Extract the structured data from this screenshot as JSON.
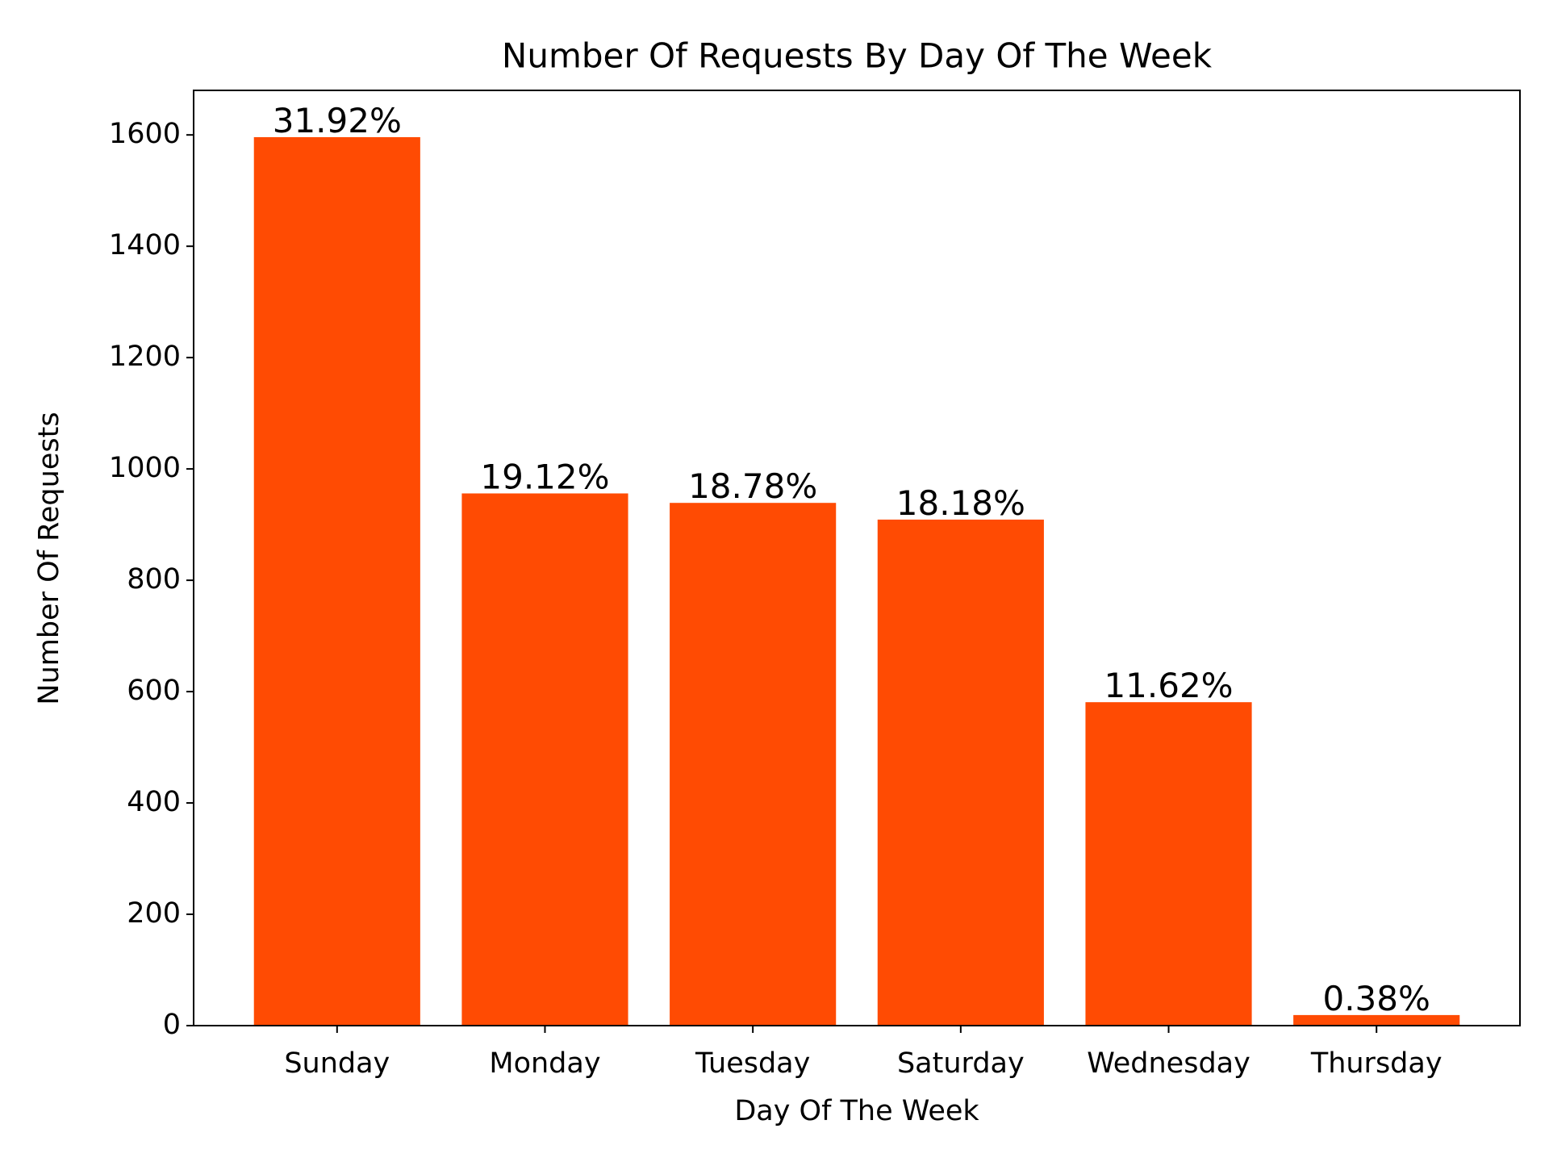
{
  "chart_data": {
    "type": "bar",
    "title": "Number Of Requests By Day Of The Week",
    "x_label": "Day Of The Week",
    "y_label": "Number Of Requests",
    "categories": [
      "Sunday",
      "Monday",
      "Tuesday",
      "Saturday",
      "Wednesday",
      "Thursday"
    ],
    "values": [
      1596,
      956,
      939,
      909,
      581,
      19
    ],
    "annotations": [
      "31.92%",
      "19.12%",
      "18.78%",
      "18.18%",
      "11.62%",
      "0.38%"
    ],
    "color": "#ff4b03",
    "ylim": [
      0,
      1680
    ],
    "yticks": [
      0,
      200,
      400,
      600,
      800,
      1000,
      1200,
      1400,
      1600
    ],
    "grid": false
  }
}
